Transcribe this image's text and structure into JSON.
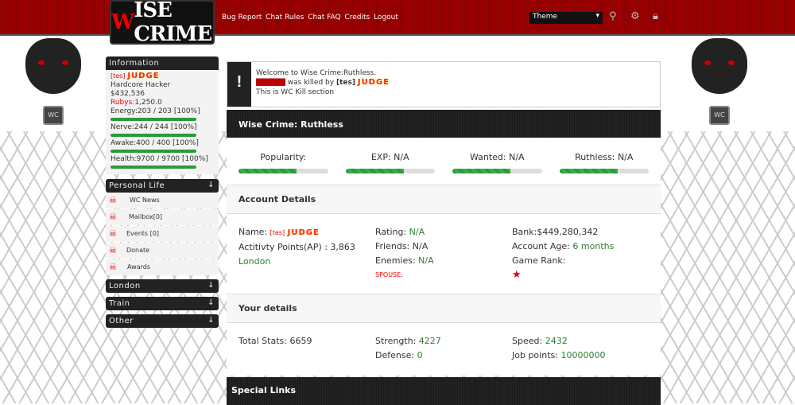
{
  "header": {
    "logo": "Wise Crime",
    "nav": [
      "Bug Report",
      "Chat Rules",
      "Chat FAQ",
      "Credits",
      "Logout"
    ],
    "theme_select": "Theme"
  },
  "sidebar": {
    "info_title": "Information",
    "gang_tag": "[tes]",
    "username": "JUDGE",
    "rank": "Hardcore Hacker",
    "money": "$432,536",
    "rubys_label": "Rubys:",
    "rubys_value": "1,250.0",
    "bars": [
      {
        "label": "Energy:203 / 203 [100%]",
        "percent": 100
      },
      {
        "label": "Nerve:244 / 244 [100%]",
        "percent": 100
      },
      {
        "label": "Awake:400 / 400 [100%]",
        "percent": 100
      },
      {
        "label": "Health:9700 / 9700 [100%]",
        "percent": 100
      }
    ],
    "personal_life": "Personal Life",
    "items": [
      "WC News",
      "Mailbox[0]",
      "Events [0]",
      "Donate",
      "Awards"
    ],
    "sections": [
      "London",
      "Train",
      "Other"
    ],
    "arrow": "↓"
  },
  "alert": {
    "line1": "Welcome to Wise Crime:Ruthless.",
    "killed_text": "was killed by",
    "killer_tag": "[tes]",
    "killer": "JUDGE",
    "line3": "This is WC Kill section"
  },
  "main": {
    "title": "Wise Crime: Ruthless",
    "stats": [
      {
        "label": "Popularity:",
        "percent": 65
      },
      {
        "label": "EXP: N/A",
        "percent": 65
      },
      {
        "label": "Wanted: N/A",
        "percent": 65
      },
      {
        "label": "Ruthless: N/A",
        "percent": 65
      }
    ],
    "account_title": "Account Details",
    "name_label": "Name:",
    "name_tag": "[tes]",
    "name": "JUDGE",
    "ap": "Actitivty Points(AP) : 3,863",
    "city": "London",
    "rating_label": "Rating:",
    "rating": "N/A",
    "friends": "Friends: N/A",
    "enemies_label": "Enemies:",
    "enemies": "N/A",
    "spouse": "SPOUSE:",
    "bank": "Bank:$449,280,342",
    "age_label": "Account Age:",
    "age": "6 months",
    "game_rank": "Game Rank:",
    "details_title": "Your details",
    "total_stats": "Total Stats: 6659",
    "strength_label": "Strength:",
    "strength": "4227",
    "defense_label": "Defense:",
    "defense": "0",
    "speed_label": "Speed:",
    "speed": "2432",
    "job_label": "Job points:",
    "job": "10000000",
    "special_links": "Special Links"
  }
}
